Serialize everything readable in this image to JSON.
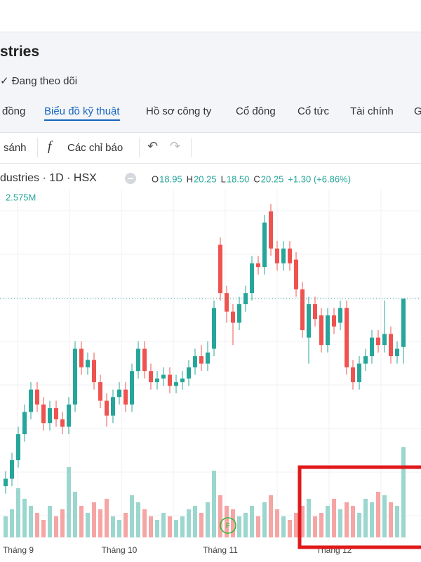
{
  "header": {
    "title": "stries",
    "follow": "✓ Đang theo dõi",
    "tabs": [
      "đồng",
      "Biểu đồ kỹ thuật",
      "Hồ sơ công ty",
      "Cổ đông",
      "Cổ tức",
      "Tài chính",
      "G"
    ]
  },
  "toolbar": {
    "compare": "sánh",
    "indicators": "Các chỉ báo"
  },
  "chart_data": {
    "type": "candlestick",
    "symbol": "dustries · 1D · HSX",
    "ohlc_labels": [
      "O",
      "H",
      "L",
      "C"
    ],
    "legend_values": [
      "18.95",
      "20.25",
      "18.50",
      "20.25"
    ],
    "change": "+1.30 (+6.86%)",
    "volume_label": "2.575M",
    "month_labels": [
      "Tháng 9",
      "Tháng 10",
      "Tháng 11",
      "Tháng 12"
    ],
    "month_index": [
      2,
      18,
      34,
      52
    ],
    "open": [
      15.2,
      15.4,
      15.9,
      16.6,
      17.2,
      17.8,
      17.4,
      16.9,
      17.3,
      17.0,
      16.8,
      17.4,
      18.9,
      18.4,
      18.6,
      18.0,
      17.5,
      17.1,
      17.6,
      17.8,
      17.4,
      18.3,
      18.9,
      18.3,
      18.0,
      18.1,
      18.2,
      17.9,
      18.0,
      18.1,
      18.4,
      18.7,
      18.5,
      18.9,
      21.7,
      20.4,
      19.9,
      19.6,
      20.1,
      20.4,
      21.2,
      21.1,
      22.6,
      21.6,
      21.2,
      21.6,
      21.3,
      20.5,
      19.2,
      20.1,
      19.8,
      19.0,
      19.8,
      19.6,
      20.0,
      18.4,
      18.0,
      18.5,
      18.7,
      19.2,
      19.0,
      19.3,
      18.7,
      18.95
    ],
    "high": [
      15.6,
      16.1,
      16.8,
      17.4,
      18.0,
      18.0,
      17.6,
      17.5,
      17.5,
      17.2,
      17.6,
      19.1,
      19.1,
      18.8,
      18.8,
      18.2,
      17.7,
      17.8,
      18.0,
      18.0,
      18.5,
      19.1,
      19.1,
      18.5,
      18.3,
      18.4,
      18.4,
      18.2,
      18.3,
      18.6,
      18.9,
      19.0,
      19.1,
      20.2,
      21.9,
      20.6,
      20.1,
      20.3,
      20.6,
      21.4,
      21.4,
      22.5,
      22.8,
      21.8,
      21.8,
      21.8,
      21.5,
      20.7,
      20.3,
      20.3,
      20.0,
      20.0,
      20.0,
      20.2,
      20.2,
      18.6,
      18.7,
      18.9,
      19.4,
      19.4,
      20.2,
      19.5,
      19.1,
      20.25
    ],
    "low": [
      15.0,
      15.2,
      15.7,
      16.4,
      17.0,
      17.2,
      16.7,
      16.7,
      16.8,
      16.6,
      16.6,
      17.2,
      18.2,
      18.2,
      17.8,
      17.3,
      16.8,
      16.9,
      17.4,
      17.2,
      17.2,
      18.1,
      18.1,
      17.8,
      17.8,
      17.9,
      17.7,
      17.7,
      17.8,
      17.9,
      18.2,
      18.3,
      18.3,
      18.7,
      20.2,
      19.6,
      19.0,
      19.4,
      19.9,
      20.2,
      20.9,
      20.9,
      21.4,
      21.0,
      21.0,
      21.0,
      20.3,
      19.2,
      18.5,
      19.5,
      18.8,
      18.8,
      19.3,
      19.4,
      18.2,
      17.8,
      17.8,
      18.3,
      18.5,
      18.8,
      18.8,
      18.5,
      18.5,
      18.5
    ],
    "close": [
      15.4,
      15.9,
      16.6,
      17.2,
      17.8,
      17.4,
      16.9,
      17.3,
      17.0,
      16.8,
      17.4,
      18.9,
      18.4,
      18.6,
      18.0,
      17.5,
      17.1,
      17.6,
      17.8,
      17.4,
      18.3,
      18.9,
      18.3,
      18.0,
      18.1,
      18.2,
      17.9,
      18.0,
      18.1,
      18.4,
      18.7,
      18.5,
      18.8,
      20.0,
      20.4,
      19.9,
      19.6,
      20.1,
      20.4,
      21.2,
      21.1,
      22.3,
      21.6,
      21.2,
      21.6,
      21.2,
      20.5,
      19.4,
      20.1,
      19.7,
      19.0,
      19.8,
      19.5,
      20.0,
      18.4,
      18.0,
      18.5,
      18.7,
      19.2,
      19.0,
      19.3,
      18.7,
      18.9,
      20.25
    ],
    "volume": [
      0.6,
      0.8,
      1.4,
      1.1,
      0.9,
      0.7,
      0.5,
      0.9,
      0.6,
      0.8,
      2.0,
      1.3,
      0.9,
      0.7,
      1.0,
      0.8,
      1.1,
      0.6,
      0.5,
      0.7,
      1.2,
      1.0,
      0.8,
      0.6,
      0.5,
      0.7,
      0.6,
      0.5,
      0.6,
      0.8,
      0.9,
      0.7,
      1.0,
      1.9,
      1.2,
      0.9,
      0.8,
      0.6,
      0.7,
      0.9,
      0.6,
      1.0,
      1.2,
      0.8,
      0.6,
      0.5,
      0.7,
      0.9,
      1.1,
      0.6,
      0.7,
      0.9,
      1.1,
      0.8,
      1.0,
      0.9,
      0.7,
      1.1,
      1.0,
      1.3,
      1.2,
      1.0,
      0.9,
      2.575
    ],
    "ylim": [
      15.05,
      22.9
    ],
    "vol_ylim": [
      0,
      3
    ],
    "up_color": "#26a69a",
    "down_color": "#ef5350",
    "vol_up_color": "#9bd6cf",
    "vol_down_color": "#f5a5a4"
  }
}
